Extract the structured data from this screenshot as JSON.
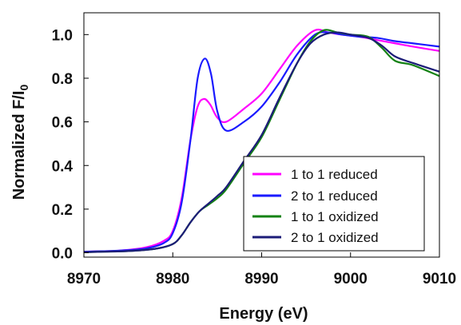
{
  "chart_data": {
    "type": "line",
    "xlabel": "Energy (eV)",
    "ylabel": "Normalized F/I",
    "ylabel_subscript": "0",
    "xlim": [
      8970,
      9010
    ],
    "ylim": [
      -0.02,
      1.1
    ],
    "xticks": [
      "8970",
      "8980",
      "8990",
      "9000",
      "9010"
    ],
    "yticks": [
      "0.0",
      "0.2",
      "0.4",
      "0.6",
      "0.8",
      "1.0"
    ],
    "grid": false,
    "legend_position": "bottom-right",
    "series": [
      {
        "name": "1 to 1 reduced",
        "color": "#ff00ff",
        "x": [
          8970,
          8974,
          8977,
          8979,
          8980,
          8981,
          8982,
          8982.8,
          8983.5,
          8984.2,
          8985,
          8986,
          8988,
          8990,
          8992,
          8994,
          8996,
          8997.5,
          8999,
          9001,
          9003,
          9005,
          9007,
          9010
        ],
        "y": [
          0.005,
          0.01,
          0.025,
          0.055,
          0.1,
          0.25,
          0.52,
          0.67,
          0.705,
          0.68,
          0.62,
          0.6,
          0.66,
          0.73,
          0.84,
          0.95,
          1.02,
          1.01,
          1.0,
          0.99,
          0.975,
          0.96,
          0.945,
          0.925
        ]
      },
      {
        "name": "2 to 1 reduced",
        "color": "#1a1aff",
        "x": [
          8970,
          8974,
          8977,
          8979,
          8980,
          8981,
          8982,
          8982.8,
          8983.6,
          8984.3,
          8985,
          8986,
          8988,
          8990,
          8992,
          8994,
          8996,
          8997.5,
          8999,
          9001,
          9003,
          9005,
          9007,
          9010
        ],
        "y": [
          0.005,
          0.01,
          0.02,
          0.045,
          0.09,
          0.23,
          0.52,
          0.8,
          0.89,
          0.82,
          0.65,
          0.56,
          0.6,
          0.67,
          0.78,
          0.91,
          1.0,
          1.01,
          1.0,
          0.99,
          0.985,
          0.97,
          0.96,
          0.945
        ]
      },
      {
        "name": "1 to 1 oxidized",
        "color": "#148214",
        "x": [
          8970,
          8975,
          8978,
          8980,
          8981,
          8982,
          8983,
          8984,
          8985,
          8986,
          8988,
          8990,
          8992,
          8994,
          8995.5,
          8997,
          8998.5,
          9000,
          9002,
          9003.5,
          9005,
          9007,
          9010
        ],
        "y": [
          0.003,
          0.008,
          0.018,
          0.04,
          0.08,
          0.14,
          0.19,
          0.22,
          0.25,
          0.29,
          0.41,
          0.53,
          0.7,
          0.87,
          0.97,
          1.02,
          1.01,
          1.0,
          0.99,
          0.94,
          0.88,
          0.86,
          0.81
        ]
      },
      {
        "name": "2 to 1 oxidized",
        "color": "#1c1c78",
        "x": [
          8970,
          8975,
          8978,
          8980,
          8981,
          8982,
          8983,
          8984,
          8985,
          8986,
          8988,
          8990,
          8992,
          8994,
          8995.5,
          8997,
          8998.5,
          9000,
          9002,
          9003.5,
          9005,
          9007,
          9010
        ],
        "y": [
          0.003,
          0.008,
          0.018,
          0.04,
          0.08,
          0.14,
          0.19,
          0.225,
          0.26,
          0.3,
          0.42,
          0.54,
          0.71,
          0.87,
          0.96,
          1.0,
          1.01,
          1.0,
          0.985,
          0.95,
          0.9,
          0.87,
          0.83
        ]
      }
    ]
  }
}
